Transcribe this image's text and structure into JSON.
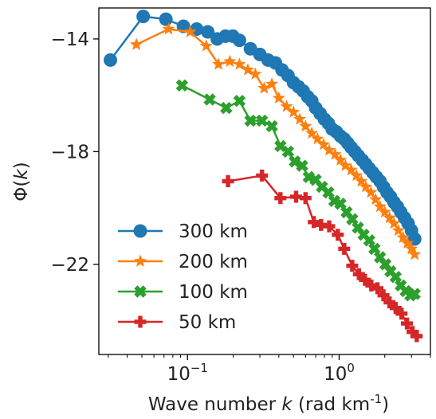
{
  "chart_data": {
    "type": "line",
    "x_scale": "log",
    "xlabel_prefix": "Wave number ",
    "xlabel_var": "k",
    "xlabel_suffix": " (rad km",
    "xlabel_exp": "-1",
    "xlabel_close": ")",
    "ylabel_main": "Φ(",
    "ylabel_var": "k",
    "ylabel_close": ")",
    "xlim": [
      0.026,
      4.0
    ],
    "ylim": [
      -25.2,
      -12.9
    ],
    "y_ticks": [
      -14,
      -18,
      -22
    ],
    "y_tick_labels": [
      "−14",
      "−18",
      "−22"
    ],
    "x_ticks": [
      0.1,
      1
    ],
    "x_tick_base": [
      "10",
      "10"
    ],
    "x_tick_exp": [
      "−1",
      "0"
    ],
    "grid": false,
    "legend_position": "lower-left",
    "series": [
      {
        "name": "300 km",
        "color": "#1f77b4",
        "marker": "circle",
        "points": [
          [
            0.031,
            -14.75
          ],
          [
            0.051,
            -13.2
          ],
          [
            0.072,
            -13.3
          ],
          [
            0.094,
            -13.55
          ],
          [
            0.115,
            -13.65
          ],
          [
            0.136,
            -13.75
          ],
          [
            0.157,
            -14.0
          ],
          [
            0.178,
            -13.9
          ],
          [
            0.199,
            -13.9
          ],
          [
            0.22,
            -14.05
          ],
          [
            0.26,
            -14.35
          ],
          [
            0.3,
            -14.55
          ],
          [
            0.34,
            -14.75
          ],
          [
            0.38,
            -14.85
          ],
          [
            0.42,
            -15.1
          ],
          [
            0.46,
            -15.3
          ],
          [
            0.5,
            -15.55
          ],
          [
            0.54,
            -15.7
          ],
          [
            0.58,
            -15.85
          ],
          [
            0.62,
            -16.05
          ],
          [
            0.66,
            -16.2
          ],
          [
            0.7,
            -16.45
          ],
          [
            0.75,
            -16.65
          ],
          [
            0.8,
            -16.85
          ],
          [
            0.85,
            -17.0
          ],
          [
            0.9,
            -17.2
          ],
          [
            0.96,
            -17.3
          ],
          [
            1.02,
            -17.45
          ],
          [
            1.08,
            -17.55
          ],
          [
            1.14,
            -17.7
          ],
          [
            1.2,
            -17.85
          ],
          [
            1.27,
            -18.0
          ],
          [
            1.34,
            -18.15
          ],
          [
            1.42,
            -18.3
          ],
          [
            1.5,
            -18.45
          ],
          [
            1.58,
            -18.6
          ],
          [
            1.67,
            -18.75
          ],
          [
            1.76,
            -18.9
          ],
          [
            1.86,
            -19.05
          ],
          [
            1.96,
            -19.25
          ],
          [
            2.07,
            -19.45
          ],
          [
            2.18,
            -19.6
          ],
          [
            2.3,
            -19.8
          ],
          [
            2.42,
            -19.95
          ],
          [
            2.55,
            -20.15
          ],
          [
            2.7,
            -20.35
          ],
          [
            2.85,
            -20.55
          ],
          [
            3.0,
            -20.8
          ],
          [
            3.15,
            -21.1
          ]
        ]
      },
      {
        "name": "200 km",
        "color": "#ff7f0e",
        "marker": "star",
        "points": [
          [
            0.046,
            -14.2
          ],
          [
            0.075,
            -13.65
          ],
          [
            0.104,
            -13.75
          ],
          [
            0.133,
            -14.25
          ],
          [
            0.16,
            -14.9
          ],
          [
            0.19,
            -14.8
          ],
          [
            0.22,
            -14.9
          ],
          [
            0.25,
            -15.1
          ],
          [
            0.28,
            -15.25
          ],
          [
            0.32,
            -15.75
          ],
          [
            0.36,
            -15.6
          ],
          [
            0.4,
            -16.1
          ],
          [
            0.45,
            -16.4
          ],
          [
            0.5,
            -16.6
          ],
          [
            0.55,
            -16.85
          ],
          [
            0.6,
            -17.1
          ],
          [
            0.66,
            -17.35
          ],
          [
            0.72,
            -17.55
          ],
          [
            0.79,
            -17.75
          ],
          [
            0.86,
            -17.95
          ],
          [
            0.94,
            -18.1
          ],
          [
            1.02,
            -18.3
          ],
          [
            1.1,
            -18.5
          ],
          [
            1.2,
            -18.65
          ],
          [
            1.3,
            -18.85
          ],
          [
            1.4,
            -19.05
          ],
          [
            1.5,
            -19.25
          ],
          [
            1.62,
            -19.45
          ],
          [
            1.74,
            -19.7
          ],
          [
            1.86,
            -19.95
          ],
          [
            2.0,
            -20.15
          ],
          [
            2.15,
            -20.35
          ],
          [
            2.3,
            -20.55
          ],
          [
            2.46,
            -20.8
          ],
          [
            2.64,
            -21.05
          ],
          [
            2.82,
            -21.25
          ],
          [
            3.0,
            -21.45
          ],
          [
            3.15,
            -21.65
          ]
        ]
      },
      {
        "name": "100 km",
        "color": "#2ca02c",
        "marker": "x",
        "points": [
          [
            0.092,
            -15.65
          ],
          [
            0.14,
            -16.15
          ],
          [
            0.18,
            -16.45
          ],
          [
            0.22,
            -16.2
          ],
          [
            0.26,
            -16.9
          ],
          [
            0.31,
            -16.9
          ],
          [
            0.36,
            -17.1
          ],
          [
            0.41,
            -17.8
          ],
          [
            0.46,
            -18.0
          ],
          [
            0.51,
            -18.35
          ],
          [
            0.57,
            -18.5
          ],
          [
            0.63,
            -18.9
          ],
          [
            0.7,
            -19.0
          ],
          [
            0.77,
            -19.25
          ],
          [
            0.85,
            -19.45
          ],
          [
            0.93,
            -19.75
          ],
          [
            1.02,
            -19.85
          ],
          [
            1.12,
            -20.15
          ],
          [
            1.22,
            -20.4
          ],
          [
            1.33,
            -20.7
          ],
          [
            1.45,
            -20.95
          ],
          [
            1.58,
            -21.15
          ],
          [
            1.71,
            -21.45
          ],
          [
            1.86,
            -21.75
          ],
          [
            2.02,
            -22.0
          ],
          [
            2.18,
            -22.25
          ],
          [
            2.36,
            -22.45
          ],
          [
            2.55,
            -22.75
          ],
          [
            2.75,
            -22.95
          ],
          [
            2.95,
            -23.1
          ],
          [
            3.15,
            -23.05
          ]
        ]
      },
      {
        "name": "50 km",
        "color": "#d62728",
        "marker": "plus",
        "points": [
          [
            0.185,
            -19.05
          ],
          [
            0.31,
            -18.85
          ],
          [
            0.41,
            -19.65
          ],
          [
            0.52,
            -19.6
          ],
          [
            0.6,
            -19.65
          ],
          [
            0.68,
            -20.5
          ],
          [
            0.76,
            -20.6
          ],
          [
            0.86,
            -20.65
          ],
          [
            0.98,
            -20.95
          ],
          [
            1.08,
            -21.45
          ],
          [
            1.22,
            -22.05
          ],
          [
            1.35,
            -22.35
          ],
          [
            1.48,
            -22.55
          ],
          [
            1.63,
            -22.75
          ],
          [
            1.79,
            -22.85
          ],
          [
            1.96,
            -23.1
          ],
          [
            2.15,
            -23.35
          ],
          [
            2.36,
            -23.55
          ],
          [
            2.58,
            -23.75
          ],
          [
            2.8,
            -24.1
          ],
          [
            3.05,
            -24.4
          ],
          [
            3.25,
            -24.55
          ]
        ]
      }
    ]
  }
}
